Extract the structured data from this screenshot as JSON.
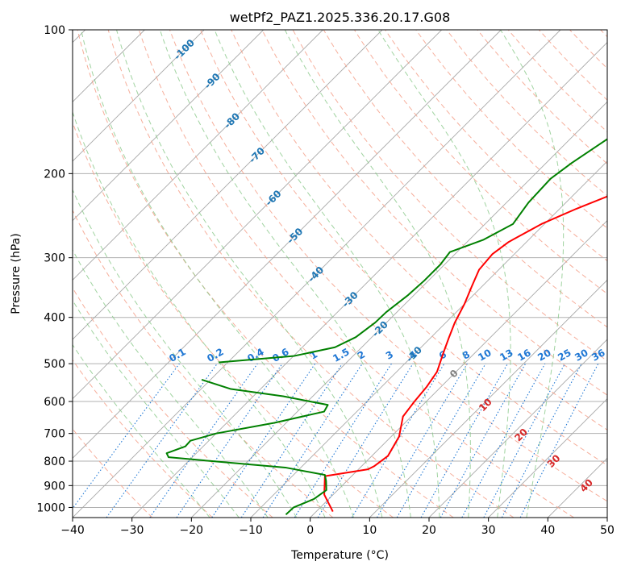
{
  "chart_data": {
    "type": "line",
    "title": "wetPf2_PAZ1.2025.336.20.17.G08",
    "xlabel": "Temperature (°C)",
    "ylabel": "Pressure (hPa)",
    "xlim": [
      -40,
      50
    ],
    "ylim": [
      1050,
      100
    ],
    "y_scale": "log",
    "grid": true,
    "x_ticks": [
      "−40",
      "−30",
      "−20",
      "−10",
      "0",
      "10",
      "20",
      "30",
      "40",
      "50"
    ],
    "x_tick_values": [
      -40,
      -30,
      -20,
      -10,
      0,
      10,
      20,
      30,
      40,
      50
    ],
    "y_ticks": [
      "100",
      "200",
      "300",
      "400",
      "500",
      "600",
      "700",
      "800",
      "900",
      "1000"
    ],
    "y_tick_values": [
      100,
      200,
      300,
      400,
      500,
      600,
      700,
      800,
      900,
      1000
    ],
    "series": [
      {
        "color": "#ff0000",
        "points": [
          [
            2.8,
            1020
          ],
          [
            -1.5,
            940
          ],
          [
            -4.5,
            860
          ],
          [
            1.6,
            832
          ],
          [
            2.1,
            820
          ],
          [
            2.7,
            780
          ],
          [
            1.3,
            710
          ],
          [
            -1.4,
            645
          ],
          [
            -2.0,
            600
          ],
          [
            -2.4,
            560
          ],
          [
            -3.2,
            520
          ],
          [
            -5.3,
            475
          ],
          [
            -7.0,
            440
          ],
          [
            -8.5,
            410
          ],
          [
            -10.0,
            375
          ],
          [
            -11.7,
            345
          ],
          [
            -13.3,
            318
          ],
          [
            -13.7,
            295
          ],
          [
            -13.0,
            278
          ],
          [
            -10.5,
            255
          ],
          [
            -7.2,
            237
          ],
          [
            -3.3,
            220
          ],
          [
            0.5,
            200
          ],
          [
            3.7,
            180
          ],
          [
            7.7,
            158
          ],
          [
            12.0,
            140
          ],
          [
            15.0,
            125
          ],
          [
            17.5,
            112
          ],
          [
            20.5,
            100
          ]
        ]
      },
      {
        "color": "#008000",
        "points": [
          [
            -4.6,
            1035
          ],
          [
            -4.5,
            1000
          ],
          [
            -2.5,
            960
          ],
          [
            -1.9,
            920
          ],
          [
            -3.5,
            880
          ],
          [
            -4.7,
            855
          ],
          [
            -12.6,
            825
          ],
          [
            -26.0,
            800
          ],
          [
            -34.0,
            785
          ],
          [
            -35.0,
            770
          ],
          [
            -33.0,
            745
          ],
          [
            -33.1,
            725
          ],
          [
            -30.0,
            700
          ],
          [
            -22.0,
            665
          ],
          [
            -15.5,
            630
          ],
          [
            -16.0,
            610
          ],
          [
            -25.0,
            585
          ],
          [
            -35.0,
            565
          ],
          [
            -41.5,
            540
          ]
        ]
      },
      {
        "color": "#008000",
        "points": [
          [
            -41.5,
            497
          ],
          [
            -30.0,
            482
          ],
          [
            -24.5,
            462
          ],
          [
            -22.7,
            440
          ],
          [
            -21.9,
            410
          ],
          [
            -21.8,
            390
          ],
          [
            -21.0,
            360
          ],
          [
            -20.7,
            335
          ],
          [
            -20.7,
            310
          ],
          [
            -21.2,
            292
          ],
          [
            -17.6,
            275
          ],
          [
            -15.3,
            255
          ],
          [
            -16.3,
            230
          ],
          [
            -16.6,
            205
          ],
          [
            -15.7,
            190
          ],
          [
            -13.8,
            170
          ],
          [
            -10.5,
            150
          ],
          [
            -5.6,
            130
          ],
          [
            -0.7,
            112
          ],
          [
            2.0,
            100
          ]
        ]
      }
    ],
    "dry_adiabats_C": [
      -30,
      -20,
      -10,
      0,
      10,
      20,
      30,
      40,
      50,
      60,
      70,
      80,
      90,
      100,
      110,
      120,
      130,
      140,
      150,
      160,
      170,
      180,
      190,
      200
    ],
    "moist_adiabats_C": [
      -20,
      -15,
      -10,
      -5,
      0,
      5,
      10,
      15,
      20,
      25,
      30,
      35
    ],
    "isotherm_labels": [
      "-100",
      "-90",
      "-80",
      "-70",
      "-60",
      "-50",
      "-40",
      "-30",
      "-20",
      "-10"
    ],
    "isotherm_label_positions": [
      {
        "label": "-100",
        "t": -100,
        "p": 110
      },
      {
        "label": "-90",
        "t": -90,
        "p": 128
      },
      {
        "label": "-80",
        "t": -80,
        "p": 155
      },
      {
        "label": "-70",
        "t": -70,
        "p": 183
      },
      {
        "label": "-60",
        "t": -60,
        "p": 225
      },
      {
        "label": "-50",
        "t": -50,
        "p": 270
      },
      {
        "label": "-40",
        "t": -40,
        "p": 325
      },
      {
        "label": "-30",
        "t": -30,
        "p": 367
      },
      {
        "label": "-20",
        "t": -20,
        "p": 423
      },
      {
        "label": "-10",
        "t": -10,
        "p": 478
      }
    ],
    "mixing_ratio_labels": [
      "0.1",
      "0.2",
      "0.4",
      "0.6",
      "1",
      "1.5",
      "2",
      "3",
      "4",
      "6",
      "8",
      "10",
      "13",
      "16",
      "20",
      "25",
      "30",
      "36"
    ],
    "mixing_ratio_values": [
      0.1,
      0.2,
      0.4,
      0.6,
      1,
      1.5,
      2,
      3,
      4,
      6,
      8,
      10,
      13,
      16,
      20,
      25,
      30,
      36
    ],
    "theta_e_labels": [
      "0",
      "10",
      "20",
      "30",
      "40"
    ],
    "theta_e_label_positions": [
      {
        "label": "0",
        "t": 24.2,
        "p": 525
      },
      {
        "label": "10",
        "t": 29.5,
        "p": 610
      },
      {
        "label": "20",
        "t": 35.5,
        "p": 705
      },
      {
        "label": "30",
        "t": 41.0,
        "p": 800
      },
      {
        "label": "40",
        "t": 46.5,
        "p": 900
      }
    ],
    "colors": {
      "temperature": "#ff0000",
      "dewpoint": "#008000",
      "isobar_grid": "#b0b0b0",
      "skewed_isotherm": "#a8a8a8",
      "dry_adiabat": "#f4a08a",
      "moist_adiabat": "#88c888",
      "mixing_ratio": "#1f77d4",
      "isotherm_label": "#1f77b4",
      "theta_e_zero_label": "#808080",
      "theta_e_label": "#d62728",
      "tan_curve": "#c8a070"
    }
  }
}
